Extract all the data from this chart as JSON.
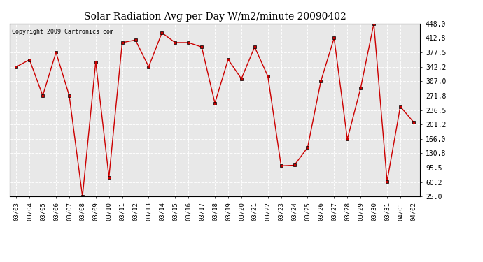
{
  "title": "Solar Radiation Avg per Day W/m2/minute 20090402",
  "copyright": "Copyright 2009 Cartronics.com",
  "dates": [
    "03/03",
    "03/04",
    "03/05",
    "03/06",
    "03/07",
    "03/08",
    "03/09",
    "03/10",
    "03/11",
    "03/12",
    "03/13",
    "03/14",
    "03/15",
    "03/16",
    "03/17",
    "03/18",
    "03/19",
    "03/20",
    "03/21",
    "03/22",
    "03/23",
    "03/24",
    "03/25",
    "03/26",
    "03/27",
    "03/28",
    "03/29",
    "03/30",
    "03/31",
    "04/01",
    "04/02"
  ],
  "values": [
    342.2,
    359.5,
    271.8,
    377.5,
    271.8,
    25.0,
    354.2,
    72.0,
    401.5,
    407.8,
    342.2,
    425.5,
    401.5,
    401.5,
    390.8,
    253.5,
    360.2,
    313.0,
    390.8,
    319.0,
    100.0,
    101.5,
    144.8,
    307.0,
    412.8,
    165.0,
    289.5,
    448.0,
    62.0,
    245.0,
    207.0
  ],
  "line_color": "#cc0000",
  "marker": "s",
  "marker_size": 2.5,
  "bg_color": "#ffffff",
  "plot_bg_color": "#e8e8e8",
  "grid_color": "#ffffff",
  "ylim": [
    25.0,
    448.0
  ],
  "yticks": [
    25.0,
    60.2,
    95.5,
    130.8,
    166.0,
    201.2,
    236.5,
    271.8,
    307.0,
    342.2,
    377.5,
    412.8,
    448.0
  ],
  "title_fontsize": 10,
  "copyright_fontsize": 6,
  "tick_fontsize": 6.5
}
